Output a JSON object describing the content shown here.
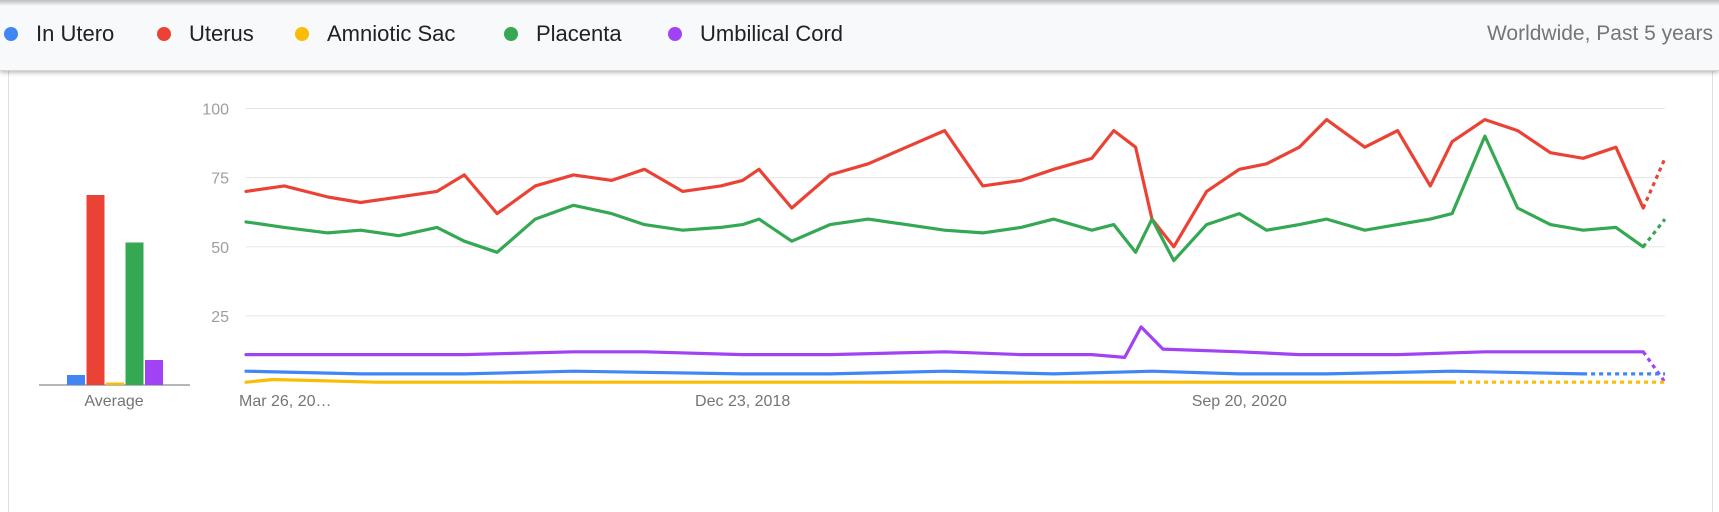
{
  "legend": {
    "items": [
      {
        "label": "In Utero",
        "color": "#4285f4"
      },
      {
        "label": "Uterus",
        "color": "#ea4335"
      },
      {
        "label": "Amniotic Sac",
        "color": "#fbbc04"
      },
      {
        "label": "Placenta",
        "color": "#34a853"
      },
      {
        "label": "Umbilical Cord",
        "color": "#a142f4"
      }
    ],
    "region": "Worldwide, Past 5 years"
  },
  "chart_data": [
    {
      "type": "bar",
      "xlabel": "Average",
      "categories": [
        "In Utero",
        "Uterus",
        "Amniotic Sac",
        "Placenta",
        "Umbilical Cord"
      ],
      "values": [
        4,
        76,
        1,
        57,
        10
      ],
      "colors": [
        "#4285f4",
        "#ea4335",
        "#fbbc04",
        "#34a853",
        "#a142f4"
      ],
      "ylim": [
        0,
        100
      ]
    },
    {
      "type": "line",
      "ylim": [
        0,
        100
      ],
      "yticks": [
        25,
        50,
        75,
        100
      ],
      "x_tick_labels": [
        "Mar 26, 20…",
        "Dec 23, 2018",
        "Sep 20, 2020"
      ],
      "grid": true,
      "x_range": [
        "2017-03-26",
        "2022-03-20"
      ],
      "series": [
        {
          "name": "Uterus",
          "color": "#ea4335",
          "x": [
            "2017-03-26",
            "2017-05-14",
            "2017-07-09",
            "2017-08-20",
            "2017-10-08",
            "2017-11-26",
            "2017-12-31",
            "2018-02-11",
            "2018-04-01",
            "2018-05-20",
            "2018-07-08",
            "2018-08-19",
            "2018-10-07",
            "2018-11-25",
            "2018-12-23",
            "2019-01-13",
            "2019-02-24",
            "2019-04-14",
            "2019-06-02",
            "2019-07-21",
            "2019-09-08",
            "2019-10-27",
            "2019-12-15",
            "2020-01-26",
            "2020-03-15",
            "2020-04-12",
            "2020-05-10",
            "2020-05-31",
            "2020-06-28",
            "2020-08-09",
            "2020-09-20",
            "2020-10-25",
            "2020-12-06",
            "2021-01-10",
            "2021-02-28",
            "2021-04-11",
            "2021-05-23",
            "2021-06-20",
            "2021-08-01",
            "2021-09-12",
            "2021-10-24",
            "2021-12-05",
            "2022-01-16",
            "2022-02-20",
            "2022-03-20"
          ],
          "values": [
            70,
            72,
            68,
            66,
            68,
            70,
            76,
            62,
            72,
            76,
            74,
            78,
            70,
            72,
            74,
            78,
            64,
            76,
            80,
            86,
            92,
            72,
            74,
            78,
            82,
            92,
            86,
            60,
            50,
            70,
            78,
            80,
            86,
            96,
            86,
            92,
            72,
            88,
            96,
            92,
            84,
            82,
            86,
            64,
            82
          ]
        },
        {
          "name": "Placenta",
          "color": "#34a853",
          "x": [
            "2017-03-26",
            "2017-05-14",
            "2017-07-09",
            "2017-08-20",
            "2017-10-08",
            "2017-11-26",
            "2017-12-31",
            "2018-02-11",
            "2018-04-01",
            "2018-05-20",
            "2018-07-08",
            "2018-08-19",
            "2018-10-07",
            "2018-11-25",
            "2018-12-23",
            "2019-01-13",
            "2019-02-24",
            "2019-04-14",
            "2019-06-02",
            "2019-07-21",
            "2019-09-08",
            "2019-10-27",
            "2019-12-15",
            "2020-01-26",
            "2020-03-15",
            "2020-04-12",
            "2020-05-10",
            "2020-05-31",
            "2020-06-28",
            "2020-08-09",
            "2020-09-20",
            "2020-10-25",
            "2020-12-06",
            "2021-01-10",
            "2021-02-28",
            "2021-04-11",
            "2021-05-23",
            "2021-06-20",
            "2021-08-01",
            "2021-09-12",
            "2021-10-24",
            "2021-12-05",
            "2022-01-16",
            "2022-02-20",
            "2022-03-20"
          ],
          "values": [
            59,
            57,
            55,
            56,
            54,
            57,
            52,
            48,
            60,
            65,
            62,
            58,
            56,
            57,
            58,
            60,
            52,
            58,
            60,
            58,
            56,
            55,
            57,
            60,
            56,
            58,
            48,
            60,
            45,
            58,
            62,
            56,
            58,
            60,
            56,
            58,
            60,
            62,
            90,
            64,
            58,
            56,
            57,
            50,
            60
          ]
        },
        {
          "name": "Umbilical Cord",
          "color": "#a142f4",
          "x": [
            "2017-03-26",
            "2017-08-20",
            "2017-12-31",
            "2018-05-20",
            "2018-08-19",
            "2018-12-23",
            "2019-04-14",
            "2019-09-08",
            "2019-12-15",
            "2020-03-15",
            "2020-04-26",
            "2020-05-17",
            "2020-06-14",
            "2020-09-20",
            "2020-12-06",
            "2021-04-11",
            "2021-08-01",
            "2021-12-05",
            "2022-02-20",
            "2022-03-20"
          ],
          "values": [
            11,
            11,
            11,
            12,
            12,
            11,
            11,
            12,
            11,
            11,
            10,
            21,
            13,
            12,
            11,
            11,
            12,
            12,
            12,
            1
          ]
        },
        {
          "name": "In Utero",
          "color": "#4285f4",
          "x": [
            "2017-03-26",
            "2017-08-20",
            "2017-12-31",
            "2018-05-20",
            "2018-12-23",
            "2019-04-14",
            "2019-09-08",
            "2020-01-26",
            "2020-05-31",
            "2020-09-20",
            "2021-01-10",
            "2021-06-20",
            "2021-12-05",
            "2022-03-20"
          ],
          "values": [
            5,
            4,
            4,
            5,
            4,
            4,
            5,
            4,
            5,
            4,
            4,
            5,
            4,
            4
          ]
        },
        {
          "name": "Amniotic Sac",
          "color": "#fbbc04",
          "x": [
            "2017-03-26",
            "2017-04-30",
            "2017-09-10",
            "2018-04-29",
            "2018-10-07",
            "2020-03-15",
            "2021-06-20",
            "2022-03-20"
          ],
          "values": [
            1,
            2,
            1,
            1,
            1,
            1,
            1,
            1
          ]
        }
      ]
    }
  ]
}
